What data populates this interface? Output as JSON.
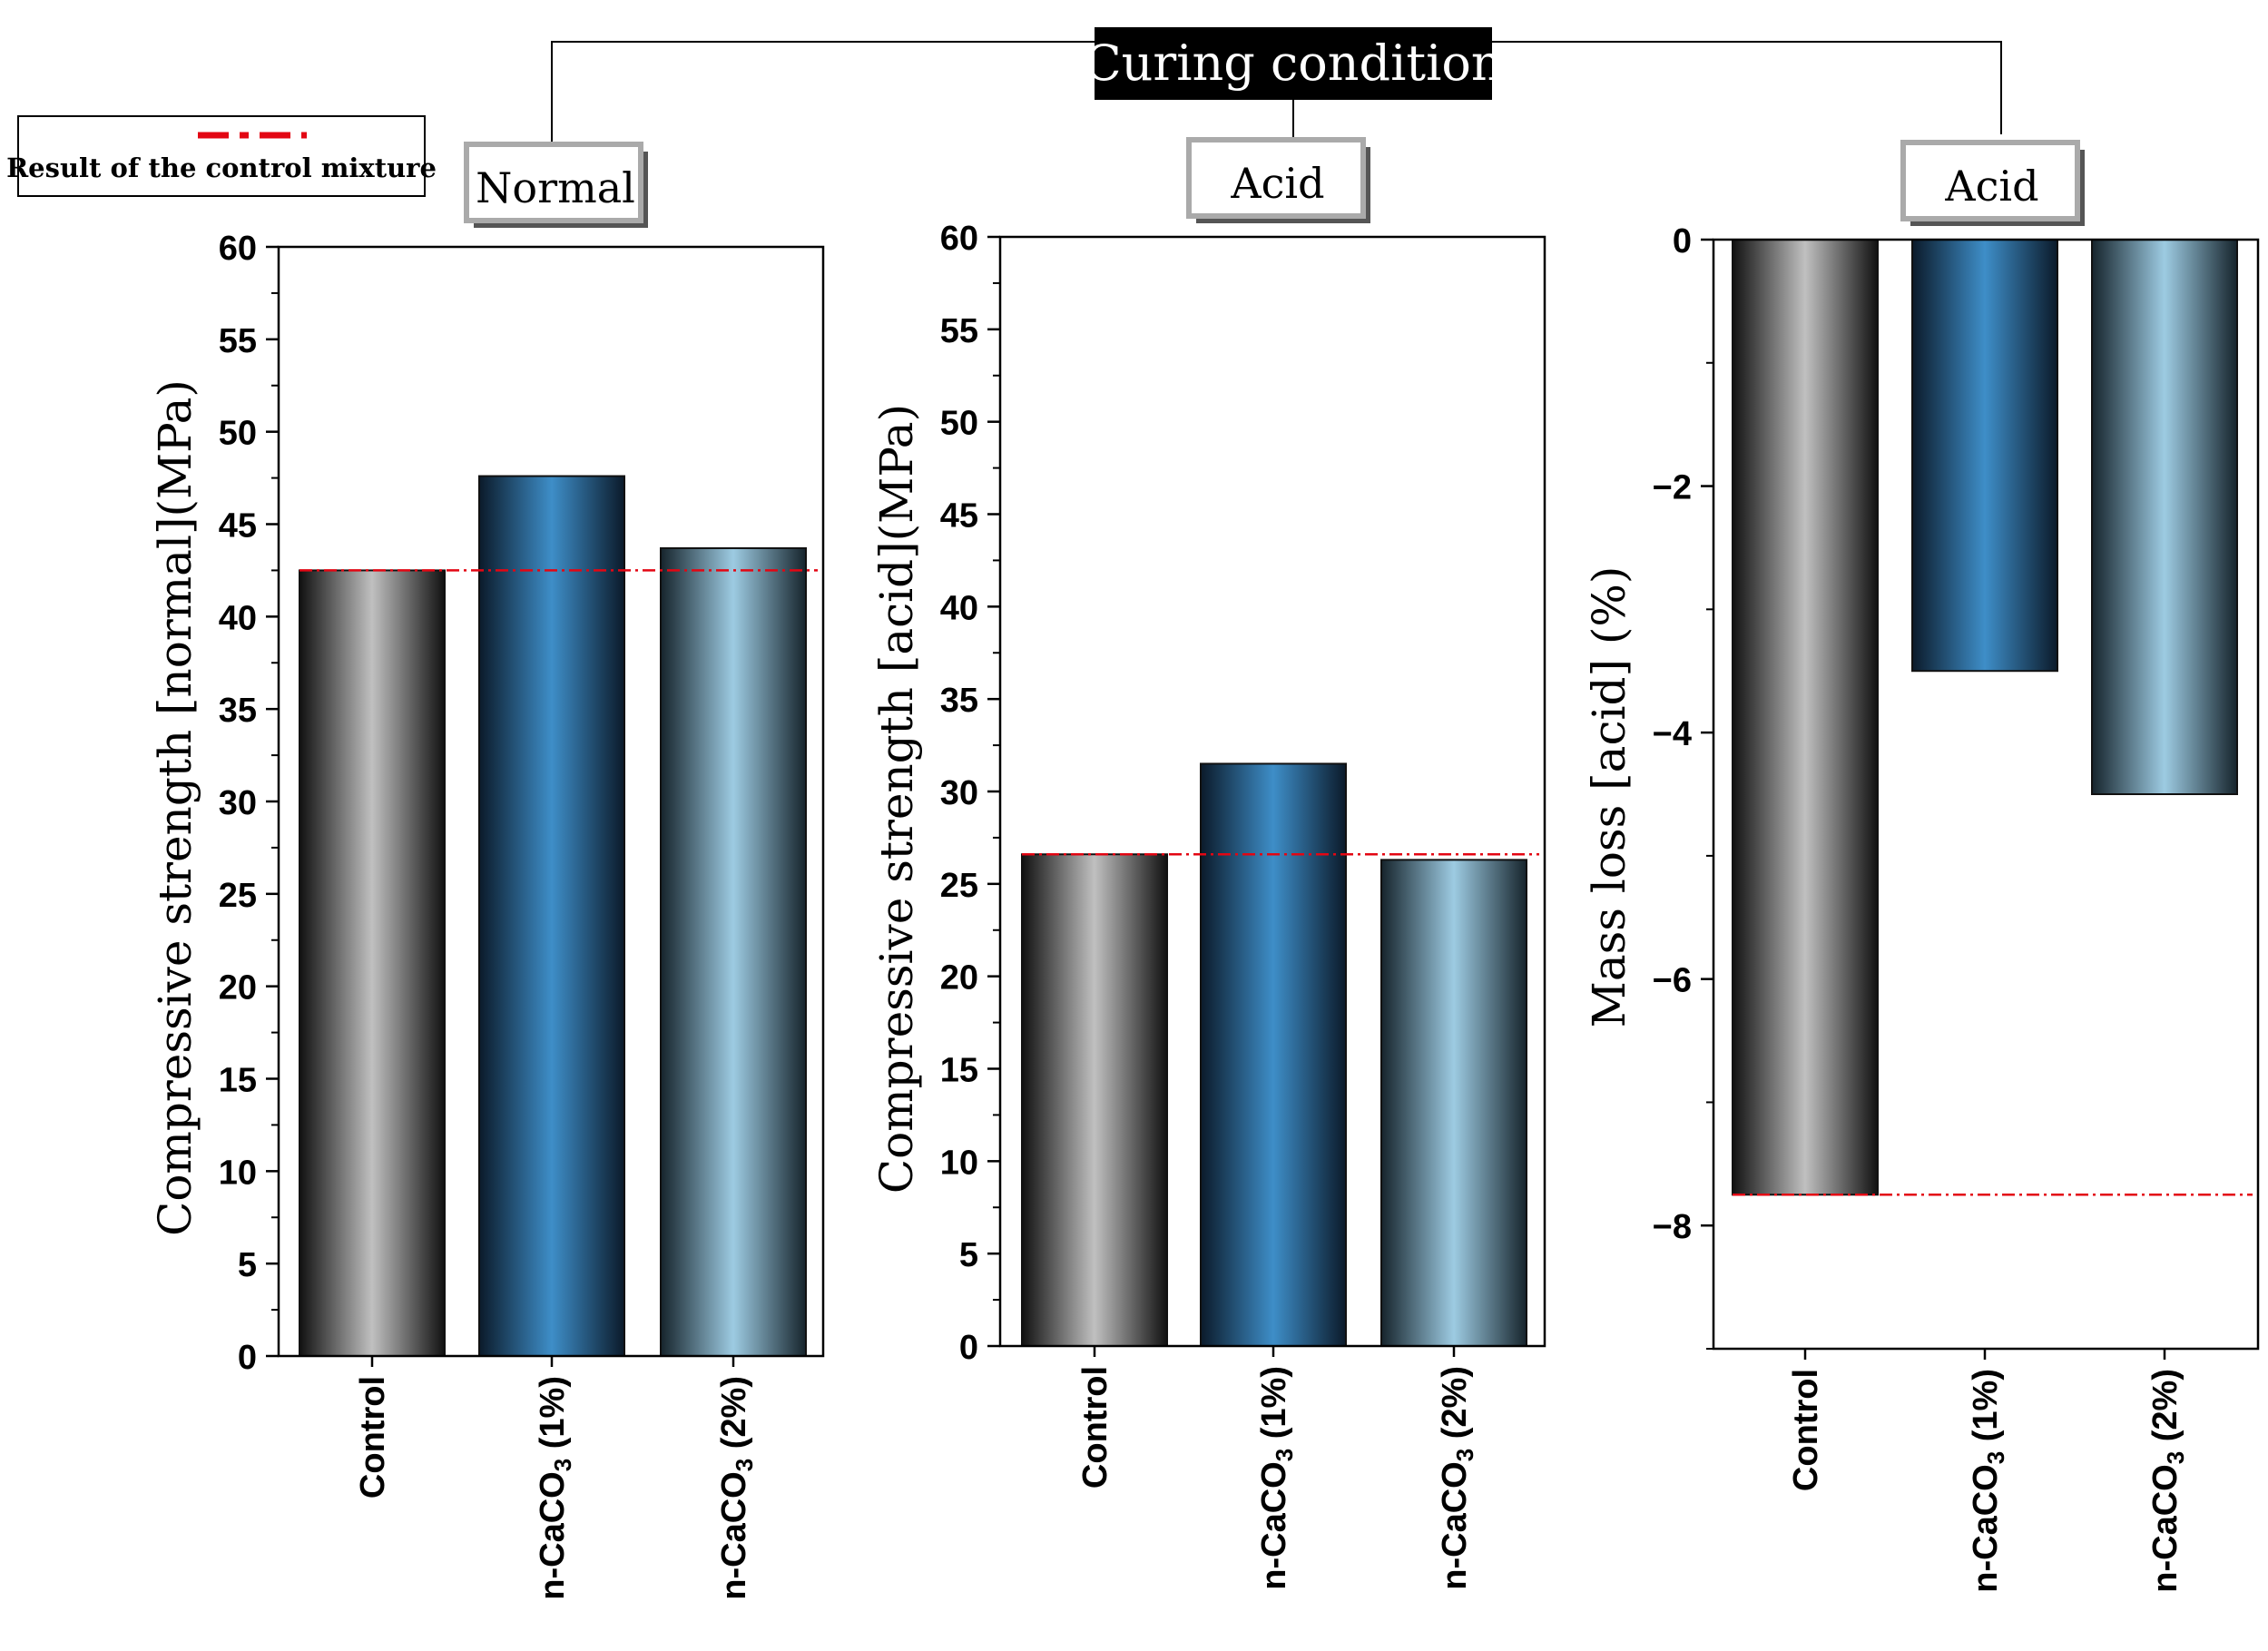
{
  "header": {
    "title": "Curing condition"
  },
  "legend": {
    "label": "Result of the control mixture",
    "line_color": "#e30613"
  },
  "colors": {
    "control": "#c0c0c0",
    "n1": "#3e8ec8",
    "n2": "#9dcbe2",
    "edge": "#111111",
    "reference": "#e30613"
  },
  "chart_data": [
    {
      "type": "bar",
      "panel_label": "Normal",
      "categories": [
        "Control",
        "n-CaCO3 (1%)",
        "n-CaCO3 (2%)"
      ],
      "values": [
        42.5,
        47.6,
        43.7
      ],
      "ylabel": "Compressive strength [normal](MPa)",
      "ylim": [
        0,
        60
      ],
      "yticks": [
        0,
        5,
        10,
        15,
        20,
        25,
        30,
        35,
        40,
        45,
        50,
        55,
        60
      ],
      "ytick_labels": [
        "0",
        "5",
        "10",
        "15",
        "20",
        "25",
        "30",
        "35",
        "40",
        "45",
        "50",
        "55",
        "60"
      ],
      "reference_value": 42.5
    },
    {
      "type": "bar",
      "panel_label": "Acid",
      "categories": [
        "Control",
        "n-CaCO3 (1%)",
        "n-CaCO3 (2%)"
      ],
      "values": [
        26.6,
        31.5,
        26.3
      ],
      "ylabel": "Compressive strength [acid](MPa)",
      "ylim": [
        0,
        60
      ],
      "yticks": [
        0,
        5,
        10,
        15,
        20,
        25,
        30,
        35,
        40,
        45,
        50,
        55,
        60
      ],
      "ytick_labels": [
        "0",
        "5",
        "10",
        "15",
        "20",
        "25",
        "30",
        "35",
        "40",
        "45",
        "50",
        "55",
        "60"
      ],
      "reference_value": 26.6
    },
    {
      "type": "bar",
      "panel_label": "Acid",
      "categories": [
        "Control",
        "n-CaCO3 (1%)",
        "n-CaCO3 (2%)"
      ],
      "values": [
        -7.75,
        -3.5,
        -4.5
      ],
      "ylabel": "Mass loss [acid] (%)",
      "ylim": [
        -9,
        0
      ],
      "yticks": [
        0,
        -2,
        -4,
        -6,
        -8
      ],
      "ytick_labels": [
        "0",
        "−2",
        "−4",
        "−6",
        "−8"
      ],
      "reference_value": -7.75
    }
  ]
}
